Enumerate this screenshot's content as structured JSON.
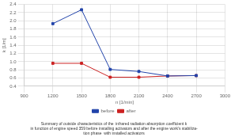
{
  "chart_data": {
    "type": "line",
    "x": [
      1200,
      1500,
      1800,
      2100,
      2400,
      2700
    ],
    "series": [
      {
        "name": "before",
        "color": "#2244aa",
        "marker": "square",
        "line_style": "solid",
        "values": [
          1.93,
          2.27,
          0.81,
          0.76,
          0.65,
          0.66
        ]
      },
      {
        "name": "after",
        "color": "#cc2222",
        "marker": "square",
        "line_style": "solid",
        "values": [
          0.96,
          0.96,
          0.62,
          0.62,
          0.65,
          0.66
        ]
      }
    ],
    "xlabel": "n [1/min]",
    "ylabel": "k [1/m]",
    "xlim": [
      900,
      3000
    ],
    "ylim": [
      0.4,
      2.4
    ],
    "xticks": [
      900,
      1200,
      1500,
      1800,
      2100,
      2400,
      2700,
      3000
    ],
    "yticks": [
      0.4,
      0.6,
      0.8,
      {
        "value": 1.0,
        "label": "1.0"
      },
      1.2,
      1.4,
      1.6,
      1.8,
      {
        "value": 2.0,
        "label": "2.0"
      },
      2.2,
      2.4
    ],
    "grid": true,
    "legend": "bottom",
    "caption": [
      "Summary of outside characteristics of the  infrared radiation absorption coefficient k",
      "in function of engine speed 359 before installing activators and after the engine work’s stabiliza-",
      "tion phase  with installed activators"
    ]
  }
}
